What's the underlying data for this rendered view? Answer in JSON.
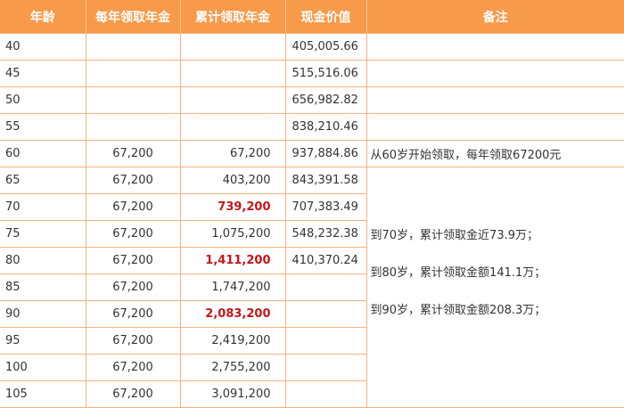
{
  "headers": [
    "年龄",
    "每年领取年金",
    "累计领取年金",
    "现金价值",
    "备注"
  ],
  "rows": [
    {
      "age": "40",
      "annual": "",
      "cumulative": "",
      "cash": "405,005.66",
      "highlight": false
    },
    {
      "age": "45",
      "annual": "",
      "cumulative": "",
      "cash": "515,516.06",
      "highlight": false
    },
    {
      "age": "50",
      "annual": "",
      "cumulative": "",
      "cash": "656,982.82",
      "highlight": false
    },
    {
      "age": "55",
      "annual": "",
      "cumulative": "",
      "cash": "838,210.46",
      "highlight": false
    },
    {
      "age": "60",
      "annual": "67,200",
      "cumulative": "67,200",
      "cash": "937,884.86",
      "highlight": false
    },
    {
      "age": "65",
      "annual": "67,200",
      "cumulative": "403,200",
      "cash": "843,391.58",
      "highlight": false
    },
    {
      "age": "70",
      "annual": "67,200",
      "cumulative": "739,200",
      "cash": "707,383.49",
      "highlight": true
    },
    {
      "age": "75",
      "annual": "67,200",
      "cumulative": "1,075,200",
      "cash": "548,232.38",
      "highlight": false
    },
    {
      "age": "80",
      "annual": "67,200",
      "cumulative": "1,411,200",
      "cash": "410,370.24",
      "highlight": true
    },
    {
      "age": "85",
      "annual": "67,200",
      "cumulative": "1,747,200",
      "cash": "",
      "highlight": false
    },
    {
      "age": "90",
      "annual": "67,200",
      "cumulative": "2,083,200",
      "cash": "",
      "highlight": true
    },
    {
      "age": "95",
      "annual": "67,200",
      "cumulative": "2,419,200",
      "cash": "",
      "highlight": false
    },
    {
      "age": "100",
      "annual": "67,200",
      "cumulative": "2,755,200",
      "cash": "",
      "highlight": false
    },
    {
      "age": "105",
      "annual": "67,200",
      "cumulative": "3,091,200",
      "cash": "",
      "highlight": false
    }
  ],
  "notes": {
    "row60": "从60岁开始领取，每年领取67200元",
    "merged": [
      "到70岁，累计领取金近73.9万；",
      "到80岁，累计领取金额141.1万；",
      "到90岁，累计领取金额208.3万；"
    ]
  },
  "colors": {
    "header_bg": "#f79a4a",
    "header_text": "#ffffff",
    "border": "#f6b37a",
    "highlight_text": "#c4161c",
    "body_text": "#333333"
  }
}
